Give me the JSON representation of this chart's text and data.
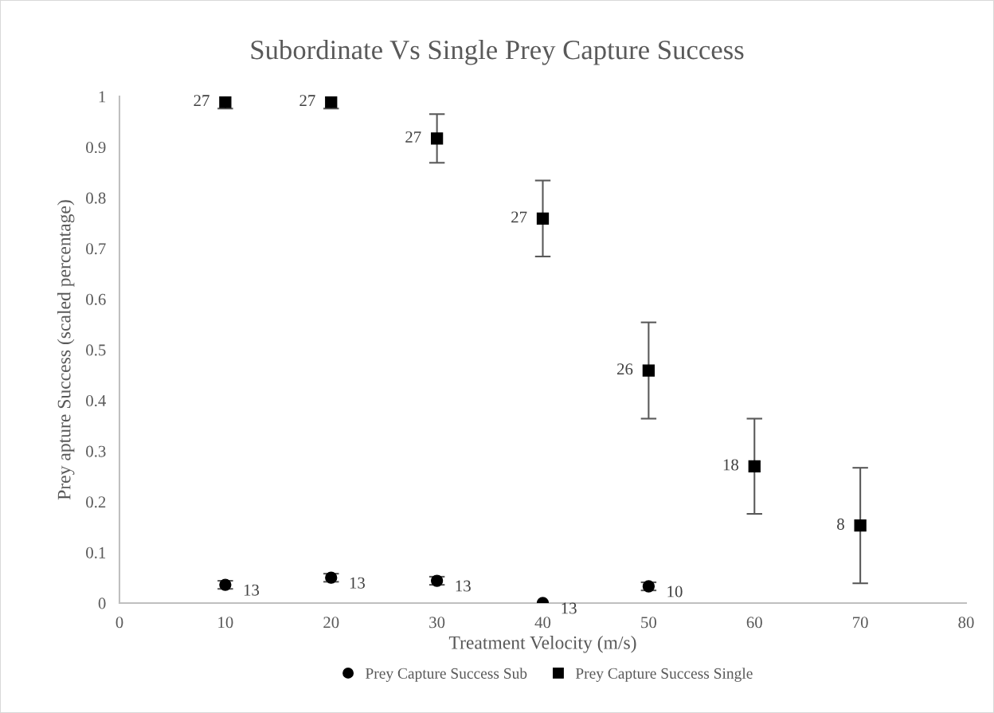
{
  "chart_data": {
    "type": "scatter",
    "title": "Subordinate Vs Single Prey Capture Success",
    "xlabel": "Treatment Velocity (m/s)",
    "ylabel": "Prey apture Success (scaled percentage)",
    "xlim": [
      0,
      80
    ],
    "xticks": [
      0,
      10,
      20,
      30,
      40,
      50,
      60,
      70,
      80
    ],
    "ylim": [
      0,
      1
    ],
    "yticks": [
      0,
      0.1,
      0.2,
      0.3,
      0.4,
      0.5,
      0.6,
      0.7,
      0.8,
      0.9,
      1
    ],
    "grid": false,
    "legend": "bottom",
    "series": [
      {
        "name": "Prey Capture Success Sub",
        "color": "#000000",
        "marker": "circle",
        "x": [
          10,
          20,
          30,
          40,
          50
        ],
        "values": [
          0.036,
          0.05,
          0.044,
          0.0,
          0.033
        ],
        "errors": [
          0.008,
          0.008,
          0.008,
          null,
          0.008
        ]
      },
      {
        "name": "Prey Capture Success Single",
        "color": "#000000",
        "marker": "square",
        "x": [
          10,
          20,
          30,
          40,
          50,
          60,
          70
        ],
        "values": [
          0.989,
          0.989,
          0.917,
          0.759,
          0.459,
          0.27,
          0.153
        ],
        "errors": [
          0.013,
          0.013,
          0.048,
          0.075,
          0.095,
          0.094,
          0.114
        ]
      }
    ],
    "annotations": [
      {
        "text": "13",
        "x": 10,
        "y": 0.036
      },
      {
        "text": "13",
        "x": 20,
        "y": 0.05
      },
      {
        "text": "13",
        "x": 30,
        "y": 0.044
      },
      {
        "text": "13",
        "x": 40,
        "y": 0.0
      },
      {
        "text": "10",
        "x": 50,
        "y": 0.033
      },
      {
        "text": "27",
        "x": 10,
        "y": 0.989
      },
      {
        "text": "27",
        "x": 20,
        "y": 0.989
      },
      {
        "text": "27",
        "x": 30,
        "y": 0.917
      },
      {
        "text": "27",
        "x": 40,
        "y": 0.759
      },
      {
        "text": "26",
        "x": 50,
        "y": 0.459
      },
      {
        "text": "18",
        "x": 60,
        "y": 0.27
      },
      {
        "text": "8",
        "x": 70,
        "y": 0.153
      }
    ]
  }
}
